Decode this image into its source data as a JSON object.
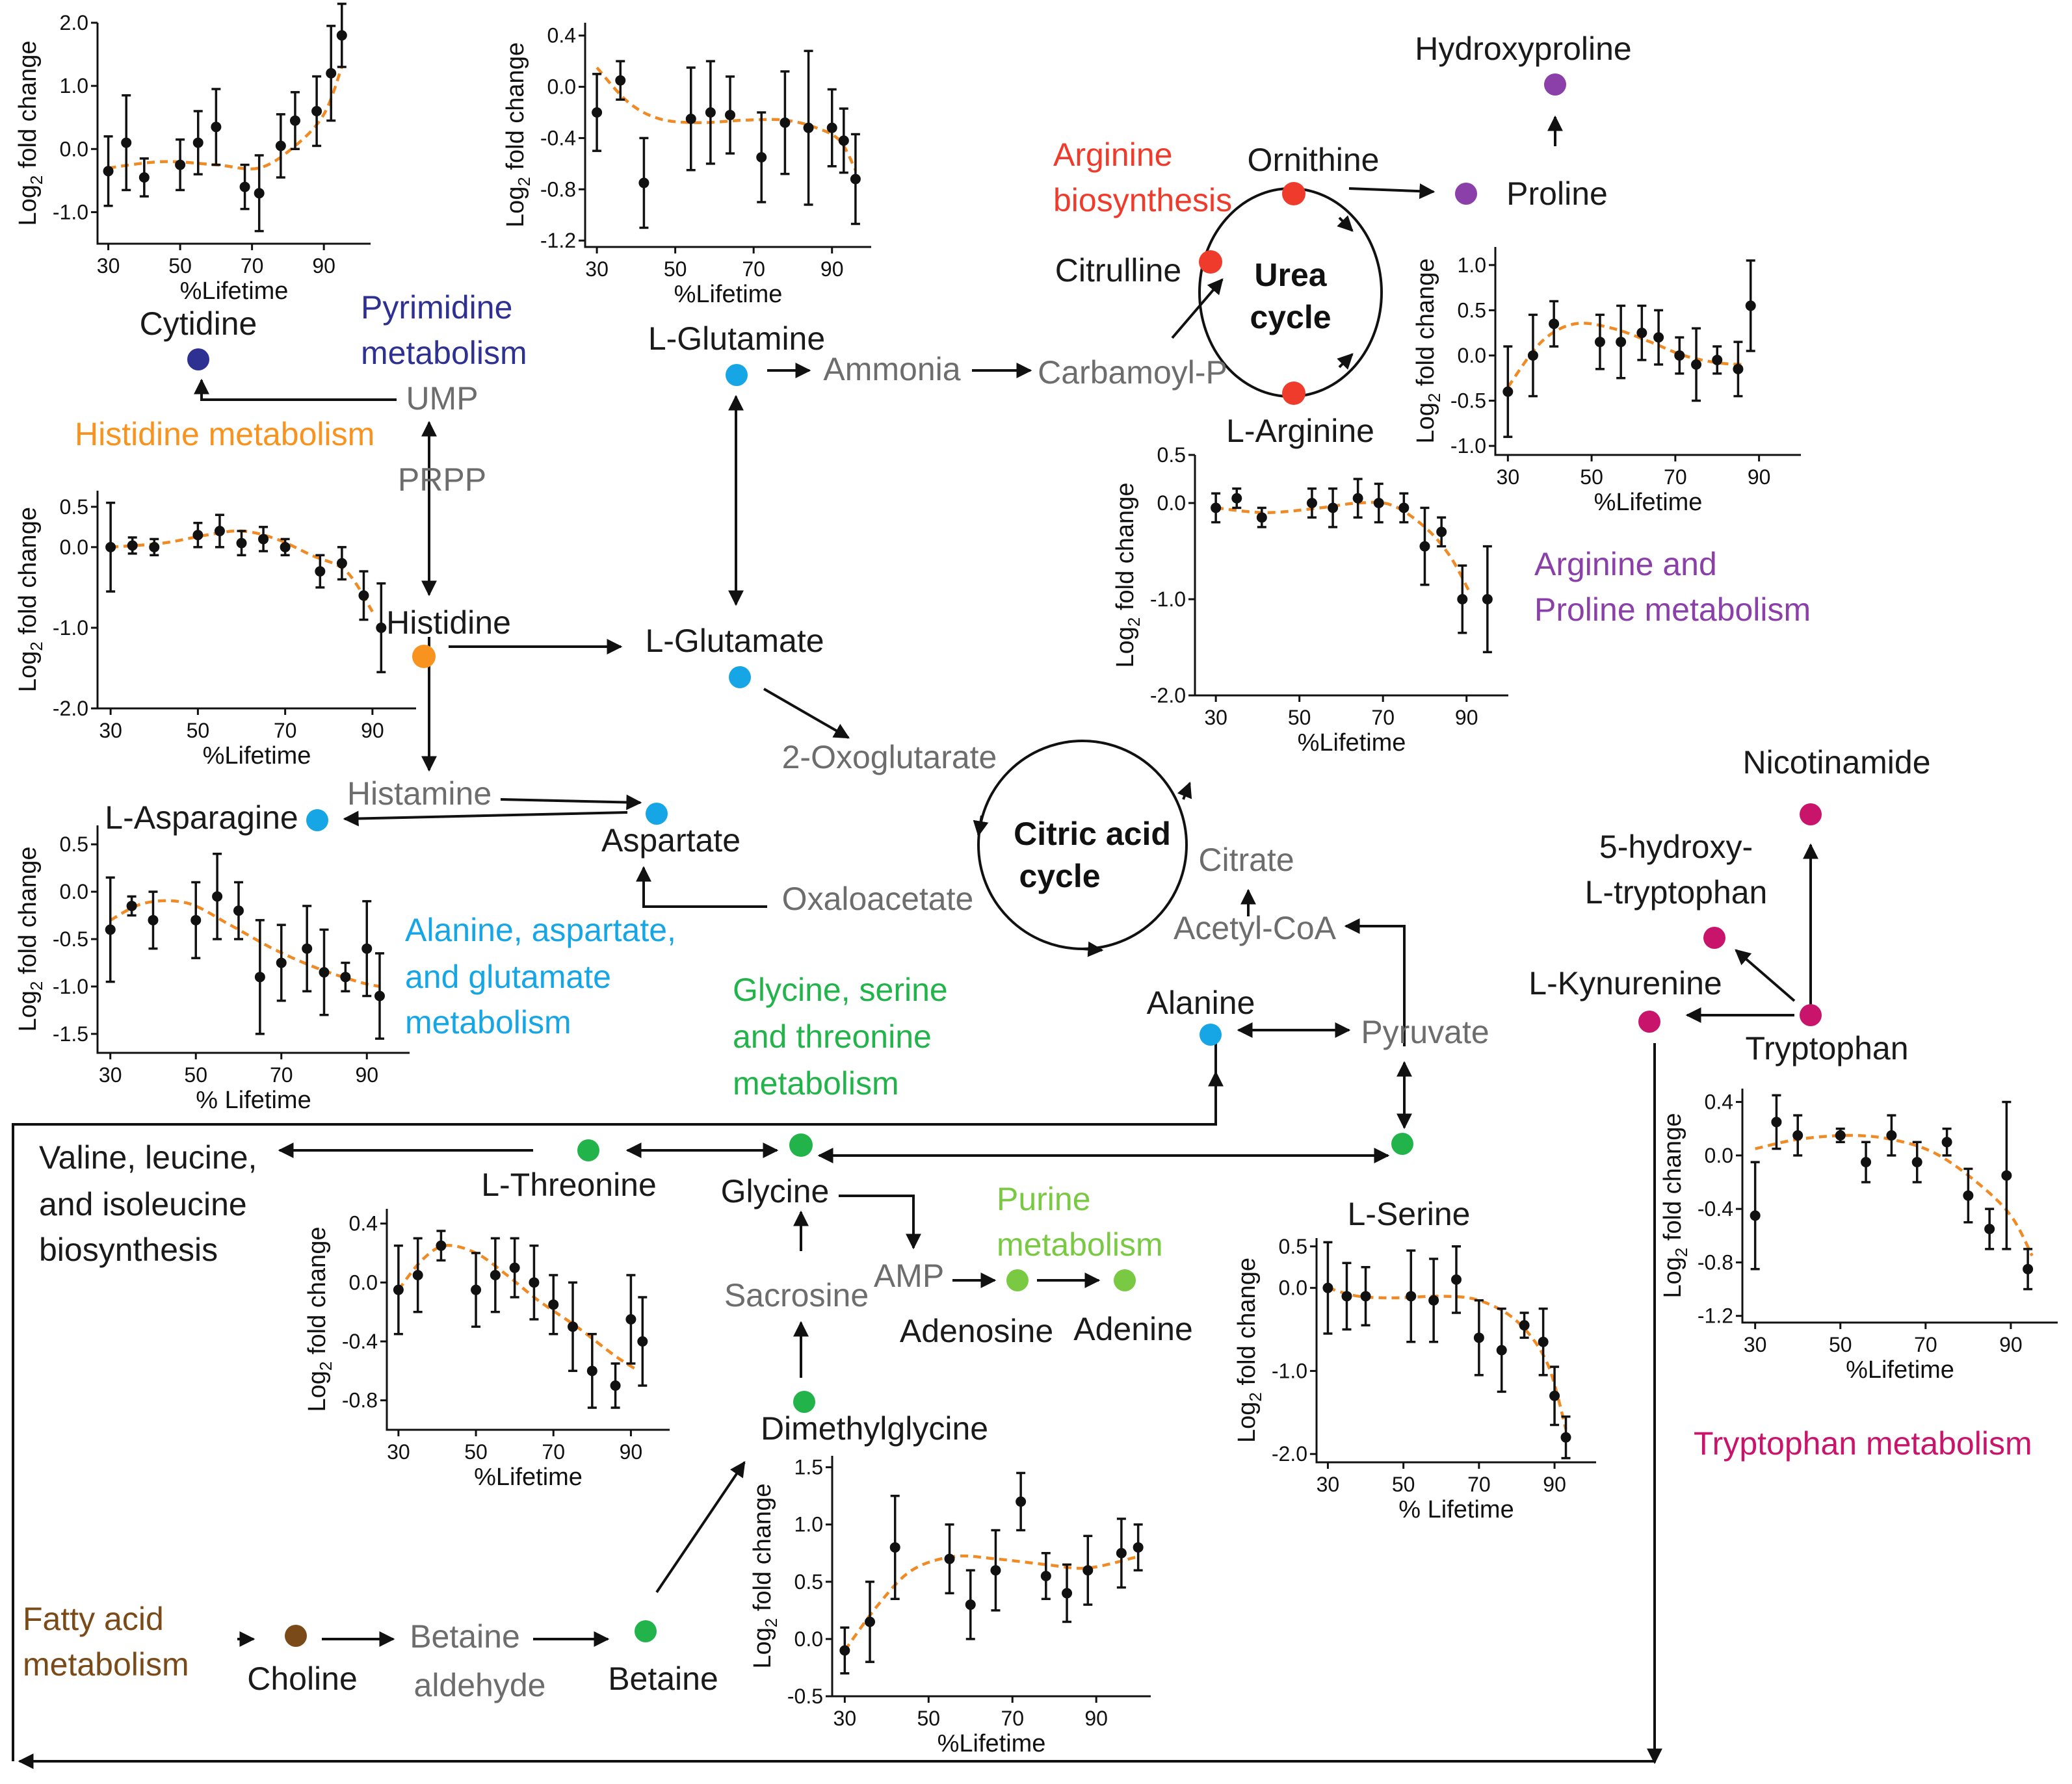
{
  "colors": {
    "red": "#ef3b2c",
    "purple": "#8b3fa8",
    "blue": "#16a6e6",
    "navy": "#2e3192",
    "orange": "#f7931e",
    "green": "#22b44a",
    "brown": "#7a4a18",
    "magenta": "#c8156b",
    "lightgreen": "#7ac943",
    "fit": "#f08a24"
  },
  "pathways": {
    "arginine_biosynthesis": [
      "Arginine",
      "biosynthesis"
    ],
    "pyrimidine": [
      "Pyrimidine",
      "metabolism"
    ],
    "histidine": "Histidine metabolism",
    "arg_pro": [
      "Arginine and",
      "Proline metabolism"
    ],
    "ala_asp_glu": [
      "Alanine, aspartate,",
      "and glutamate",
      "metabolism"
    ],
    "gly_ser_thr": [
      "Glycine, serine",
      "and threonine",
      "metabolism"
    ],
    "purine": [
      "Purine",
      "metabolism"
    ],
    "tryptophan": "Tryptophan metabolism",
    "fatty_acid": [
      "Fatty acid",
      "metabolism"
    ],
    "bcaa": [
      "Valine, leucine,",
      "and isoleucine",
      "biosynthesis"
    ]
  },
  "cycles": {
    "urea": [
      "Urea",
      "cycle"
    ],
    "citric": [
      "Citric acid",
      "cycle"
    ]
  },
  "metabolites": {
    "hydroxyproline": "Hydroxyproline",
    "ornithine": "Ornithine",
    "proline": "Proline",
    "citrulline": "Citrulline",
    "l_arginine": "L-Arginine",
    "cytidine": "Cytidine",
    "ump": "UMP",
    "prpp": "PRPP",
    "histidine": "Histidine",
    "l_glutamine": "L-Glutamine",
    "ammonia": "Ammonia",
    "carbamoyl_p": "Carbamoyl-P",
    "l_glutamate": "L-Glutamate",
    "oxoglutarate": "2-Oxoglutarate",
    "histamine": "Histamine",
    "l_asparagine": "L-Asparagine",
    "aspartate": "Aspartate",
    "oxaloacetate": "Oxaloacetate",
    "citrate": "Citrate",
    "acetyl_coa": "Acetyl-CoA",
    "alanine": "Alanine",
    "pyruvate": "Pyruvate",
    "nicotinamide": "Nicotinamide",
    "hydroxytryptophan": [
      "5-hydroxy-",
      "L-tryptophan"
    ],
    "l_kynurenine": "L-Kynurenine",
    "tryptophan": "Tryptophan",
    "l_threonine": "L-Threonine",
    "glycine": "Glycine",
    "l_serine": "L-Serine",
    "amp": "AMP",
    "sacrosine": "Sacrosine",
    "adenosine": "Adenosine",
    "adenine": "Adenine",
    "dimethylglycine": "Dimethylglycine",
    "choline": "Choline",
    "betaine_aldehyde": [
      "Betaine",
      "aldehyde"
    ],
    "betaine": "Betaine"
  },
  "plot_labels": {
    "y_main": "Log",
    "y_sub": "2",
    "y_rest": " fold change"
  },
  "chart_data": [
    {
      "id": "cytidine",
      "type": "scatter",
      "title": "Cytidine",
      "xlabel": "%Lifetime",
      "ylabel": "Log2 fold change",
      "xlim": [
        27,
        103
      ],
      "ylim": [
        -1.5,
        2.0
      ],
      "xticks": [
        30,
        50,
        70,
        90
      ],
      "yticks": [
        2.0,
        1.0,
        0.0,
        -1.0
      ],
      "ytick_labels": [
        "2.0",
        "1.0",
        "0.0",
        "-1.0"
      ],
      "x": [
        30,
        35,
        40,
        50,
        55,
        60,
        68,
        72,
        78,
        82,
        88,
        92,
        95
      ],
      "y": [
        -0.35,
        0.1,
        -0.45,
        -0.25,
        0.1,
        0.35,
        -0.6,
        -0.7,
        0.05,
        0.45,
        0.6,
        1.2,
        1.8
      ],
      "err": [
        0.55,
        0.75,
        0.3,
        0.4,
        0.5,
        0.6,
        0.35,
        0.6,
        0.5,
        0.45,
        0.55,
        0.75,
        0.5
      ],
      "fit": [
        [
          30,
          -0.3
        ],
        [
          45,
          -0.2
        ],
        [
          60,
          -0.25
        ],
        [
          72,
          -0.3
        ],
        [
          82,
          0.05
        ],
        [
          90,
          0.55
        ],
        [
          95,
          1.3
        ]
      ]
    },
    {
      "id": "l_glutamine",
      "type": "scatter",
      "title": "L-Glutamine",
      "xlabel": "%Lifetime",
      "ylabel": "Log2 fold change",
      "xlim": [
        27,
        100
      ],
      "ylim": [
        -1.25,
        0.5
      ],
      "xticks": [
        30,
        50,
        70,
        90
      ],
      "yticks": [
        0.4,
        0.0,
        -0.4,
        -0.8,
        -1.2
      ],
      "ytick_labels": [
        "0.4",
        "0.0",
        "-0.4",
        "-0.8",
        "-1.2"
      ],
      "x": [
        30,
        36,
        42,
        54,
        59,
        64,
        72,
        78,
        84,
        90,
        93,
        96
      ],
      "y": [
        -0.2,
        0.05,
        -0.75,
        -0.25,
        -0.2,
        -0.22,
        -0.55,
        -0.28,
        -0.32,
        -0.32,
        -0.42,
        -0.72
      ],
      "err": [
        0.3,
        0.15,
        0.35,
        0.4,
        0.4,
        0.3,
        0.35,
        0.4,
        0.6,
        0.3,
        0.25,
        0.35
      ],
      "fit": [
        [
          30,
          0.15
        ],
        [
          38,
          -0.12
        ],
        [
          46,
          -0.25
        ],
        [
          56,
          -0.28
        ],
        [
          68,
          -0.26
        ],
        [
          78,
          -0.26
        ],
        [
          86,
          -0.32
        ],
        [
          92,
          -0.42
        ],
        [
          96,
          -0.65
        ]
      ]
    },
    {
      "id": "l_arginine",
      "type": "scatter",
      "title": "L-Arginine",
      "xlabel": "%Lifetime",
      "ylabel": "Log2 fold change",
      "xlim": [
        25,
        100
      ],
      "ylim": [
        -2.0,
        0.5
      ],
      "xticks": [
        30,
        50,
        70,
        90
      ],
      "yticks": [
        0.5,
        0.0,
        -1.0,
        -2.0
      ],
      "ytick_labels": [
        "0.5",
        "0.0",
        "-1.0",
        "-2.0"
      ],
      "x": [
        30,
        35,
        41,
        53,
        58,
        64,
        69,
        75,
        80,
        84,
        89,
        95
      ],
      "y": [
        -0.05,
        0.05,
        -0.15,
        0.0,
        -0.05,
        0.05,
        0.0,
        -0.05,
        -0.45,
        -0.3,
        -1.0,
        -1.0
      ],
      "err": [
        0.15,
        0.1,
        0.1,
        0.15,
        0.2,
        0.2,
        0.2,
        0.15,
        0.4,
        0.15,
        0.35,
        0.55
      ],
      "fit": [
        [
          30,
          -0.05
        ],
        [
          42,
          -0.1
        ],
        [
          55,
          -0.05
        ],
        [
          64,
          0.0
        ],
        [
          72,
          -0.02
        ],
        [
          80,
          -0.25
        ],
        [
          86,
          -0.55
        ],
        [
          91,
          -0.95
        ]
      ]
    },
    {
      "id": "proline",
      "type": "scatter",
      "title": "Proline",
      "xlabel": "%Lifetime",
      "ylabel": "Log2 fold change",
      "xlim": [
        27,
        100
      ],
      "ylim": [
        -1.1,
        1.2
      ],
      "xticks": [
        30,
        50,
        70,
        90
      ],
      "yticks": [
        1.0,
        0.5,
        0.0,
        -0.5,
        -1.0
      ],
      "ytick_labels": [
        "1.0",
        "0.5",
        "0.0",
        "-0.5",
        "-1.0"
      ],
      "x": [
        30,
        36,
        41,
        52,
        57,
        62,
        66,
        71,
        75,
        80,
        85,
        88
      ],
      "y": [
        -0.4,
        0.0,
        0.35,
        0.15,
        0.15,
        0.25,
        0.2,
        0.0,
        -0.1,
        -0.05,
        -0.15,
        0.55
      ],
      "err": [
        0.5,
        0.45,
        0.25,
        0.3,
        0.4,
        0.3,
        0.3,
        0.2,
        0.4,
        0.15,
        0.3,
        0.5
      ],
      "fit": [
        [
          30,
          -0.35
        ],
        [
          38,
          0.15
        ],
        [
          46,
          0.35
        ],
        [
          55,
          0.3
        ],
        [
          64,
          0.15
        ],
        [
          72,
          0.0
        ],
        [
          80,
          -0.08
        ],
        [
          86,
          -0.1
        ]
      ]
    },
    {
      "id": "histidine",
      "type": "scatter",
      "title": "Histidine",
      "xlabel": "%Lifetime",
      "ylabel": "Log2 fold change",
      "xlim": [
        27,
        100
      ],
      "ylim": [
        -2.0,
        0.7
      ],
      "xticks": [
        30,
        50,
        70,
        90
      ],
      "yticks": [
        0.5,
        0.0,
        -1.0,
        -2.0
      ],
      "ytick_labels": [
        "0.5",
        "0.0",
        "-1.0",
        "-2.0"
      ],
      "x": [
        30,
        35,
        40,
        50,
        55,
        60,
        65,
        70,
        78,
        83,
        88,
        92
      ],
      "y": [
        0.0,
        0.02,
        0.0,
        0.15,
        0.2,
        0.05,
        0.1,
        0.0,
        -0.3,
        -0.2,
        -0.6,
        -1.0
      ],
      "err": [
        0.55,
        0.1,
        0.1,
        0.15,
        0.2,
        0.15,
        0.15,
        0.1,
        0.2,
        0.2,
        0.3,
        0.55
      ],
      "fit": [
        [
          30,
          0.0
        ],
        [
          42,
          0.05
        ],
        [
          52,
          0.15
        ],
        [
          60,
          0.2
        ],
        [
          68,
          0.1
        ],
        [
          76,
          -0.1
        ],
        [
          84,
          -0.3
        ],
        [
          90,
          -0.8
        ]
      ]
    },
    {
      "id": "l_asparagine",
      "type": "scatter",
      "title": "L-Asparagine",
      "xlabel": "% Lifetime",
      "ylabel": "Log2 fold change",
      "xlim": [
        27,
        100
      ],
      "ylim": [
        -1.7,
        0.7
      ],
      "xticks": [
        30,
        50,
        70,
        90
      ],
      "yticks": [
        0.5,
        0.0,
        -0.5,
        -1.0,
        -1.5
      ],
      "ytick_labels": [
        "0.5",
        "0.0",
        "-0.5",
        "-1.0",
        "-1.5"
      ],
      "x": [
        30,
        35,
        40,
        50,
        55,
        60,
        65,
        70,
        76,
        80,
        85,
        90,
        93
      ],
      "y": [
        -0.4,
        -0.15,
        -0.3,
        -0.3,
        -0.05,
        -0.2,
        -0.9,
        -0.75,
        -0.6,
        -0.85,
        -0.9,
        -0.6,
        -1.1
      ],
      "err": [
        0.55,
        0.1,
        0.3,
        0.4,
        0.45,
        0.3,
        0.6,
        0.4,
        0.45,
        0.45,
        0.15,
        0.5,
        0.45
      ],
      "fit": [
        [
          30,
          -0.3
        ],
        [
          38,
          -0.12
        ],
        [
          48,
          -0.12
        ],
        [
          58,
          -0.35
        ],
        [
          68,
          -0.6
        ],
        [
          78,
          -0.8
        ],
        [
          88,
          -0.95
        ],
        [
          93,
          -1.0
        ]
      ]
    },
    {
      "id": "l_threonine",
      "type": "scatter",
      "title": "L-Threonine",
      "xlabel": "%Lifetime",
      "ylabel": "Log2 fold change",
      "xlim": [
        27,
        100
      ],
      "ylim": [
        -1.0,
        0.5
      ],
      "xticks": [
        30,
        50,
        70,
        90
      ],
      "yticks": [
        0.4,
        0.0,
        -0.4,
        -0.8
      ],
      "ytick_labels": [
        "0.4",
        "0.0",
        "-0.4",
        "-0.8"
      ],
      "x": [
        30,
        35,
        41,
        50,
        55,
        60,
        65,
        70,
        75,
        80,
        86,
        90,
        93
      ],
      "y": [
        -0.05,
        0.05,
        0.25,
        -0.05,
        0.05,
        0.1,
        0.0,
        -0.15,
        -0.3,
        -0.6,
        -0.7,
        -0.25,
        -0.4
      ],
      "err": [
        0.3,
        0.25,
        0.1,
        0.25,
        0.25,
        0.2,
        0.25,
        0.2,
        0.3,
        0.25,
        0.15,
        0.3,
        0.3
      ],
      "fit": [
        [
          30,
          -0.05
        ],
        [
          36,
          0.15
        ],
        [
          42,
          0.25
        ],
        [
          50,
          0.2
        ],
        [
          58,
          0.05
        ],
        [
          66,
          -0.12
        ],
        [
          76,
          -0.3
        ],
        [
          86,
          -0.5
        ],
        [
          92,
          -0.6
        ]
      ]
    },
    {
      "id": "dimethylglycine",
      "type": "scatter",
      "title": "Dimethylglycine",
      "xlabel": "%Lifetime",
      "ylabel": "Log2 fold change",
      "xlim": [
        27,
        103
      ],
      "ylim": [
        -0.5,
        1.6
      ],
      "xticks": [
        30,
        50,
        70,
        90
      ],
      "yticks": [
        1.5,
        1.0,
        0.5,
        0.0,
        -0.5
      ],
      "ytick_labels": [
        "1.5",
        "1.0",
        "0.5",
        "0.0",
        "-0.5"
      ],
      "x": [
        30,
        36,
        42,
        55,
        60,
        66,
        72,
        78,
        83,
        88,
        96,
        100
      ],
      "y": [
        -0.1,
        0.15,
        0.8,
        0.7,
        0.3,
        0.6,
        1.2,
        0.55,
        0.4,
        0.6,
        0.75,
        0.8
      ],
      "err": [
        0.2,
        0.35,
        0.45,
        0.3,
        0.3,
        0.35,
        0.25,
        0.2,
        0.25,
        0.3,
        0.3,
        0.2
      ],
      "fit": [
        [
          30,
          -0.1
        ],
        [
          38,
          0.3
        ],
        [
          46,
          0.6
        ],
        [
          56,
          0.72
        ],
        [
          66,
          0.7
        ],
        [
          78,
          0.65
        ],
        [
          88,
          0.62
        ],
        [
          100,
          0.72
        ]
      ]
    },
    {
      "id": "l_serine",
      "type": "scatter",
      "title": "L-Serine",
      "xlabel": "% Lifetime",
      "ylabel": "Log2 fold change",
      "xlim": [
        27,
        101
      ],
      "ylim": [
        -2.1,
        0.6
      ],
      "xticks": [
        30,
        50,
        70,
        90
      ],
      "yticks": [
        0.5,
        0.0,
        -1.0,
        -2.0
      ],
      "ytick_labels": [
        "0.5",
        "0.0",
        "-1.0",
        "-2.0"
      ],
      "x": [
        30,
        35,
        40,
        52,
        58,
        64,
        70,
        76,
        82,
        87,
        90,
        93
      ],
      "y": [
        0.0,
        -0.1,
        -0.1,
        -0.1,
        -0.15,
        0.1,
        -0.6,
        -0.75,
        -0.45,
        -0.65,
        -1.3,
        -1.8
      ],
      "err": [
        0.55,
        0.4,
        0.35,
        0.55,
        0.5,
        0.4,
        0.45,
        0.5,
        0.15,
        0.4,
        0.35,
        0.25
      ],
      "fit": [
        [
          30,
          0.0
        ],
        [
          38,
          -0.1
        ],
        [
          48,
          -0.12
        ],
        [
          60,
          -0.1
        ],
        [
          70,
          -0.15
        ],
        [
          80,
          -0.4
        ],
        [
          88,
          -0.9
        ],
        [
          93,
          -1.7
        ]
      ]
    },
    {
      "id": "tryptophan",
      "type": "scatter",
      "title": "Tryptophan",
      "xlabel": "%Lifetime",
      "ylabel": "Log2 fold change",
      "xlim": [
        27,
        101
      ],
      "ylim": [
        -1.25,
        0.5
      ],
      "xticks": [
        30,
        50,
        70,
        90
      ],
      "yticks": [
        0.4,
        0.0,
        -0.4,
        -0.8,
        -1.2
      ],
      "ytick_labels": [
        "0.4",
        "0.0",
        "-0.4",
        "-0.8",
        "-1.2"
      ],
      "x": [
        30,
        35,
        40,
        50,
        56,
        62,
        68,
        75,
        80,
        85,
        89,
        94
      ],
      "y": [
        -0.45,
        0.25,
        0.15,
        0.15,
        -0.05,
        0.15,
        -0.05,
        0.1,
        -0.3,
        -0.55,
        -0.15,
        -0.85
      ],
      "err": [
        0.4,
        0.2,
        0.15,
        0.05,
        0.15,
        0.15,
        0.15,
        0.1,
        0.2,
        0.15,
        0.55,
        0.15
      ],
      "fit": [
        [
          30,
          0.05
        ],
        [
          40,
          0.12
        ],
        [
          52,
          0.15
        ],
        [
          62,
          0.12
        ],
        [
          72,
          0.02
        ],
        [
          82,
          -0.2
        ],
        [
          90,
          -0.45
        ],
        [
          95,
          -0.75
        ]
      ]
    }
  ]
}
